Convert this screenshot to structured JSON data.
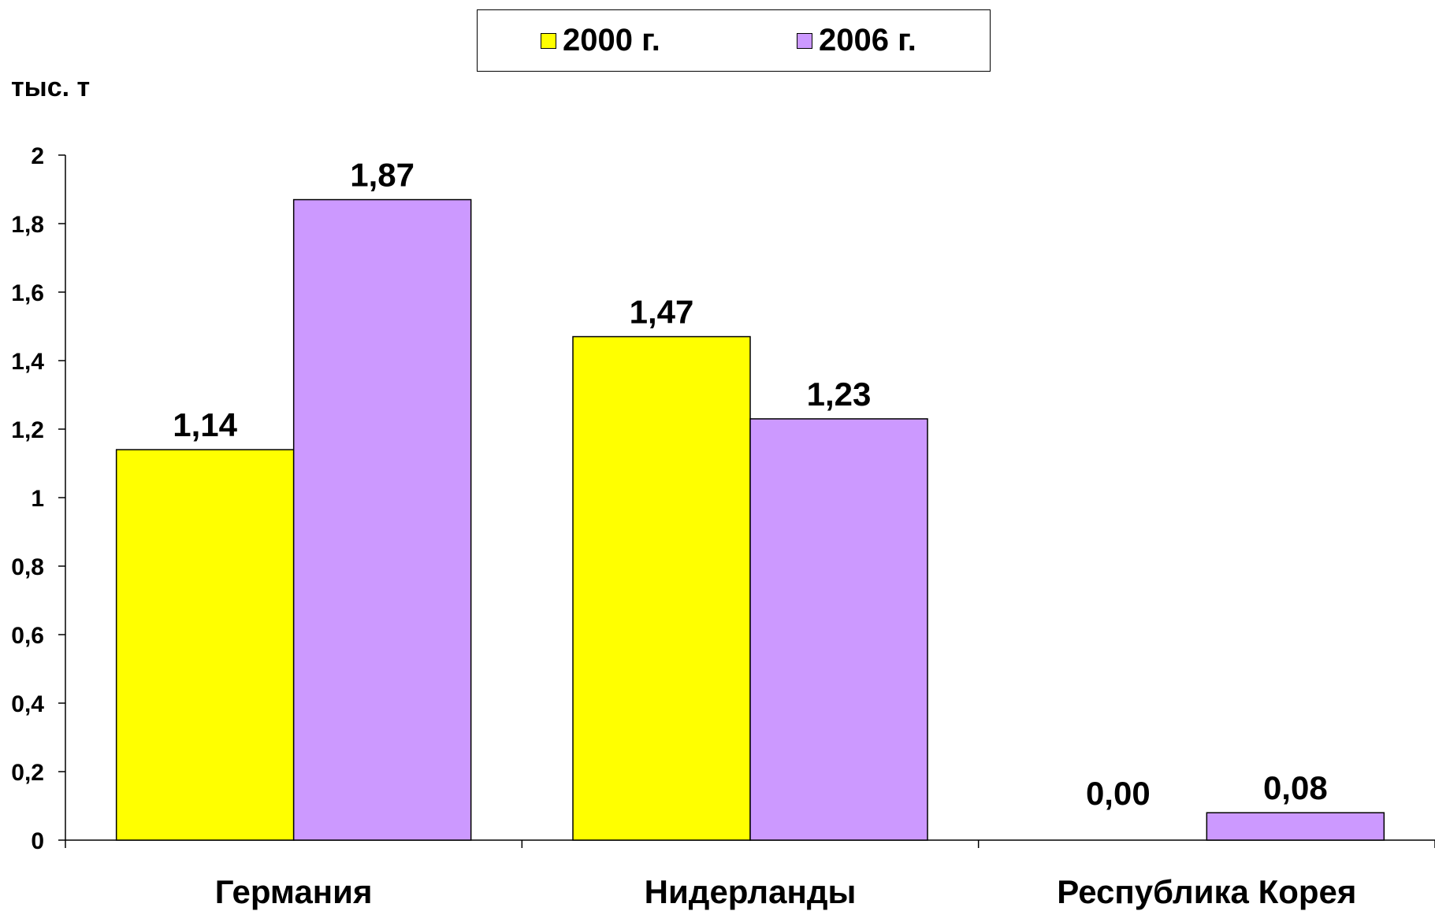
{
  "chart_data": {
    "type": "bar",
    "ylabel": "тыс. т",
    "categories": [
      "Германия",
      "Нидерланды",
      "Республика Корея"
    ],
    "series": [
      {
        "name": "2000 г.",
        "color": "#ffff00",
        "values": [
          1.14,
          1.47,
          0.0
        ],
        "labels": [
          "1,14",
          "1,47",
          "0,00"
        ]
      },
      {
        "name": "2006 г.",
        "color": "#cc99ff",
        "values": [
          1.87,
          1.23,
          0.08
        ],
        "labels": [
          "1,87",
          "1,23",
          "0,08"
        ]
      }
    ],
    "ylim": [
      0,
      2
    ],
    "yticks": [
      0,
      0.2,
      0.4,
      0.6,
      0.8,
      1,
      1.2,
      1.4,
      1.6,
      1.8,
      2
    ],
    "ytick_labels": [
      "0",
      "0,2",
      "0,4",
      "0,6",
      "0,8",
      "1",
      "1,2",
      "1,4",
      "1,6",
      "1,8",
      "2"
    ],
    "grid": false,
    "legend_position": "top-center"
  }
}
